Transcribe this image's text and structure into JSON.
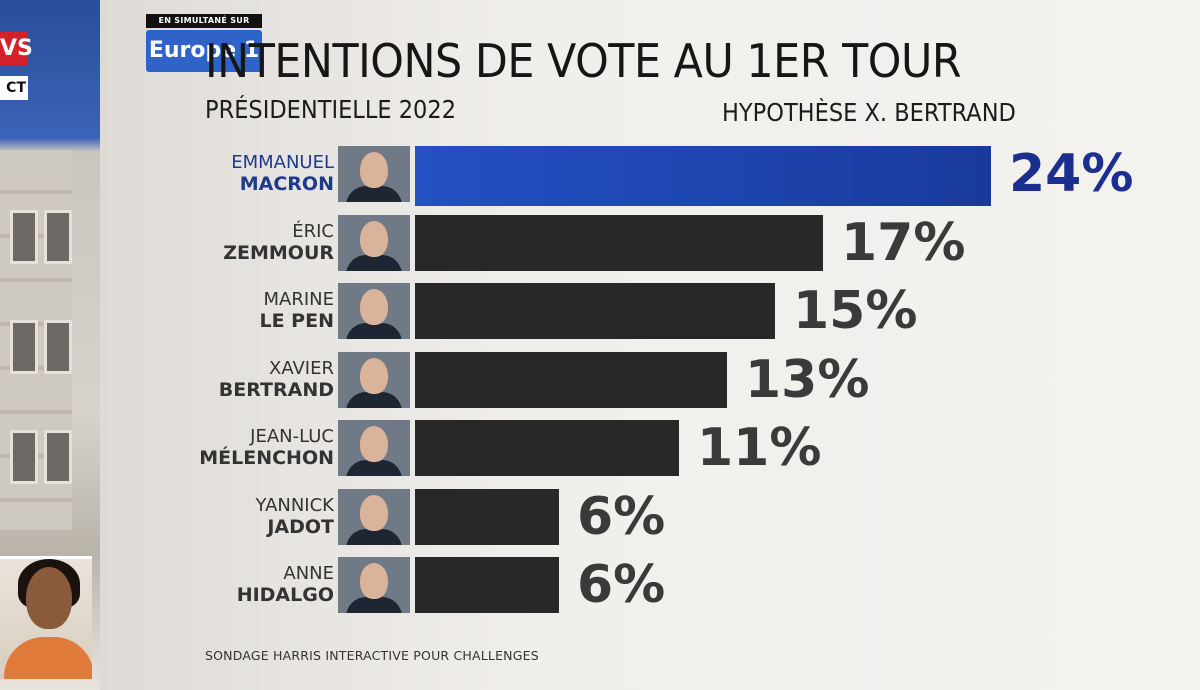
{
  "channel": {
    "tag_left_top": "VS",
    "tag_left_bottom": "CT",
    "simulcast_label": "EN SIMULTANÉ SUR",
    "station": "Europe 1"
  },
  "chart_data": {
    "type": "bar",
    "orientation": "horizontal",
    "title": "INTENTIONS DE VOTE AU 1ER TOUR",
    "subtitle": "PRÉSIDENTIELLE 2022",
    "subtitle_right": "HYPOTHÈSE X. BERTRAND",
    "source": "SONDAGE HARRIS INTERACTIVE POUR CHALLENGES",
    "xlim": [
      0,
      24
    ],
    "grid": false,
    "unit": "%",
    "categories": [
      {
        "first": "EMMANUEL",
        "last": "MACRON"
      },
      {
        "first": "ÉRIC",
        "last": "ZEMMOUR"
      },
      {
        "first": "MARINE",
        "last": "LE PEN"
      },
      {
        "first": "XAVIER",
        "last": "BERTRAND"
      },
      {
        "first": "JEAN-LUC",
        "last": "MÉLENCHON"
      },
      {
        "first": "YANNICK",
        "last": "JADOT"
      },
      {
        "first": "ANNE",
        "last": "HIDALGO"
      }
    ],
    "values": [
      24,
      17,
      15,
      13,
      11,
      6,
      6
    ],
    "labels": [
      "24%",
      "17%",
      "15%",
      "13%",
      "11%",
      "6%",
      "6%"
    ],
    "highlight_color": "#1f45b5",
    "bar_color": "#282828"
  }
}
